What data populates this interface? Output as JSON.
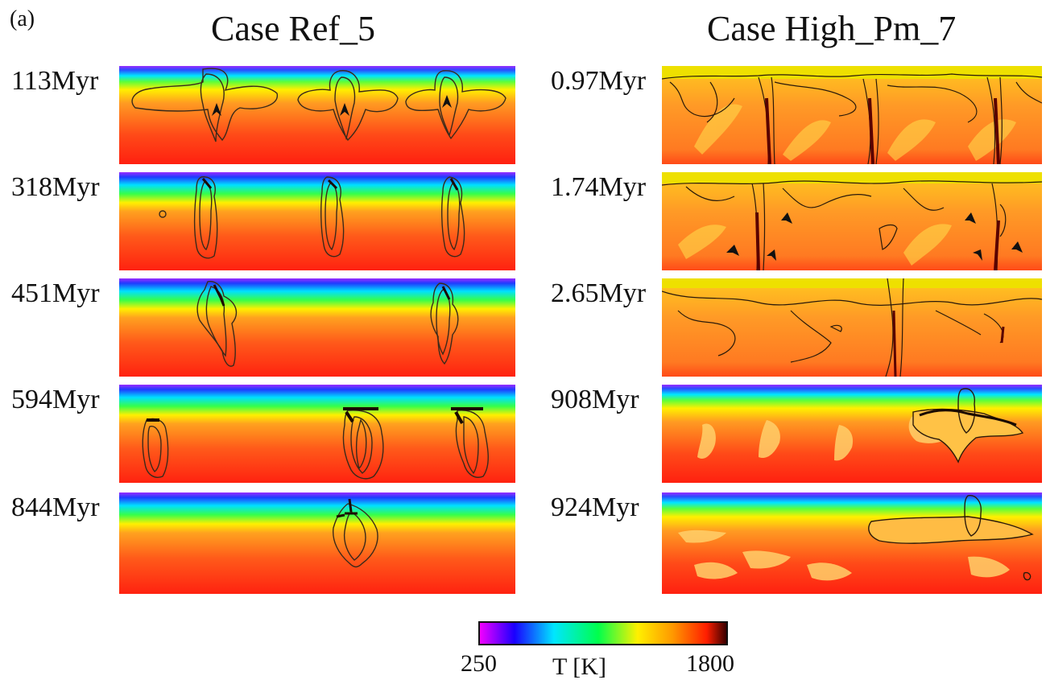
{
  "figure": {
    "panel_label": "(a)",
    "columns": [
      {
        "title": "Case Ref_5",
        "snapshots": [
          {
            "time": "113Myr"
          },
          {
            "time": "318Myr"
          },
          {
            "time": "451Myr"
          },
          {
            "time": "594Myr"
          },
          {
            "time": "844Myr"
          }
        ]
      },
      {
        "title": "Case High_Pm_7",
        "snapshots": [
          {
            "time": "0.97Myr"
          },
          {
            "time": "1.74Myr"
          },
          {
            "time": "2.65Myr"
          },
          {
            "time": "908Myr"
          },
          {
            "time": "924Myr"
          }
        ]
      }
    ]
  },
  "colorbar": {
    "min_label": "250",
    "max_label": "1800",
    "title": "T [K]",
    "min_value": 250,
    "max_value": 1800,
    "stops": [
      "#f200ff",
      "#1a00ff",
      "#00e6ff",
      "#00ff4c",
      "#fff000",
      "#ff9a00",
      "#ff1e00",
      "#3a0000"
    ]
  },
  "colors": {
    "hot": "#ff2a16",
    "warm": "#ff8a2a",
    "lithosphere_top": "#7a2cff",
    "contour": "#3a2a1a"
  }
}
